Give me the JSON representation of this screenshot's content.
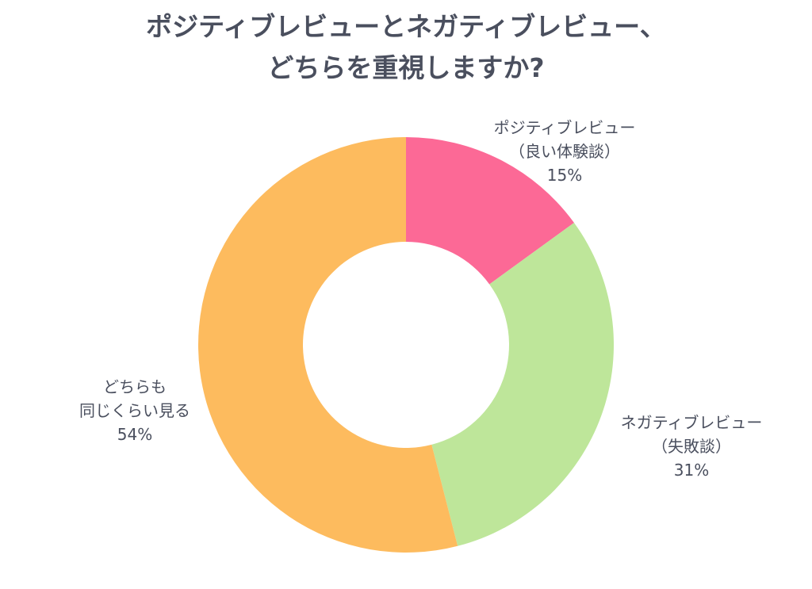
{
  "chart_data": {
    "type": "pie",
    "donut": true,
    "title_lines": [
      "ポジティブレビューとネガティブレビュー、",
      "どちらを重視しますか?"
    ],
    "slices": [
      {
        "label_lines": [
          "ポジティブレビュー",
          "（良い体験談）"
        ],
        "value": 15,
        "value_label": "15%",
        "color": "#fc6996"
      },
      {
        "label_lines": [
          "ネガティブレビュー",
          "（失敗談）"
        ],
        "value": 31,
        "value_label": "31%",
        "color": "#bee69a"
      },
      {
        "label_lines": [
          "どちらも",
          "同じくらい見る"
        ],
        "value": 54,
        "value_label": "54%",
        "color": "#fdbb5e"
      }
    ],
    "start": "top",
    "direction": "clockwise"
  }
}
